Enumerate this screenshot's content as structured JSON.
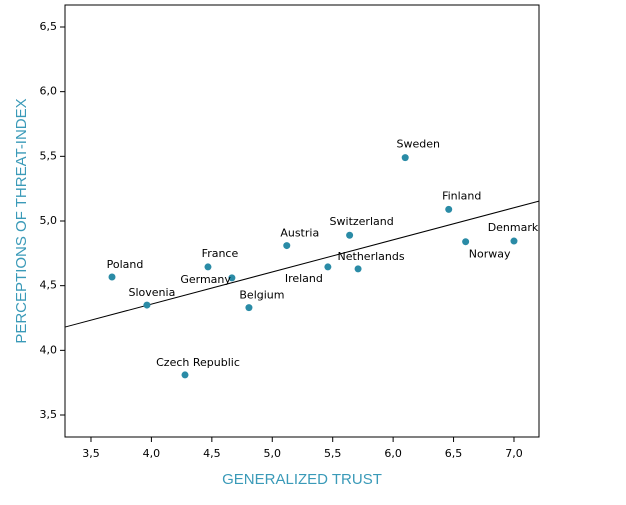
{
  "chart_data": {
    "type": "scatter",
    "x_label": "GENERALIZED TRUST",
    "y_label": "PERCEPTIONS OF THREAT-INDEX",
    "color": "#2a8ba6",
    "label_color": "#3a9ab8",
    "grid": false,
    "xlim": [
      3.285,
      7.207
    ],
    "ylim": [
      3.33,
      6.67
    ],
    "xticks": [
      {
        "value": 3.5,
        "label": "3,5"
      },
      {
        "value": 4.0,
        "label": "4,0"
      },
      {
        "value": 4.5,
        "label": "4,5"
      },
      {
        "value": 5.0,
        "label": "5,0"
      },
      {
        "value": 5.5,
        "label": "5,5"
      },
      {
        "value": 6.0,
        "label": "6,0"
      },
      {
        "value": 6.5,
        "label": "6,5"
      },
      {
        "value": 7.0,
        "label": "7,0"
      }
    ],
    "yticks": [
      {
        "value": 3.5,
        "label": "3,5"
      },
      {
        "value": 4.0,
        "label": "4,0"
      },
      {
        "value": 4.5,
        "label": "4,5"
      },
      {
        "value": 5.0,
        "label": "5,0"
      },
      {
        "value": 5.5,
        "label": "5,5"
      },
      {
        "value": 6.0,
        "label": "6,0"
      },
      {
        "value": 6.5,
        "label": "6,5"
      }
    ],
    "points": {
      "labels": [
        "Poland",
        "Slovenia",
        "Czech Republic",
        "France",
        "Germany",
        "Belgium",
        "Austria",
        "Ireland",
        "Switzerland",
        "Netherlands",
        "Sweden",
        "Finland",
        "Norway",
        "Denmark"
      ],
      "x": [
        3.674,
        3.963,
        4.278,
        4.468,
        4.666,
        4.807,
        5.12,
        5.46,
        5.64,
        5.71,
        6.1,
        6.46,
        6.6,
        7.0
      ],
      "y": [
        4.567,
        4.35,
        3.81,
        4.645,
        4.56,
        4.33,
        4.81,
        4.645,
        4.89,
        4.63,
        5.49,
        5.09,
        4.84,
        4.845
      ]
    },
    "fit_line": {
      "x": [
        3.285,
        7.207
      ],
      "y": [
        4.18,
        5.154
      ]
    }
  }
}
